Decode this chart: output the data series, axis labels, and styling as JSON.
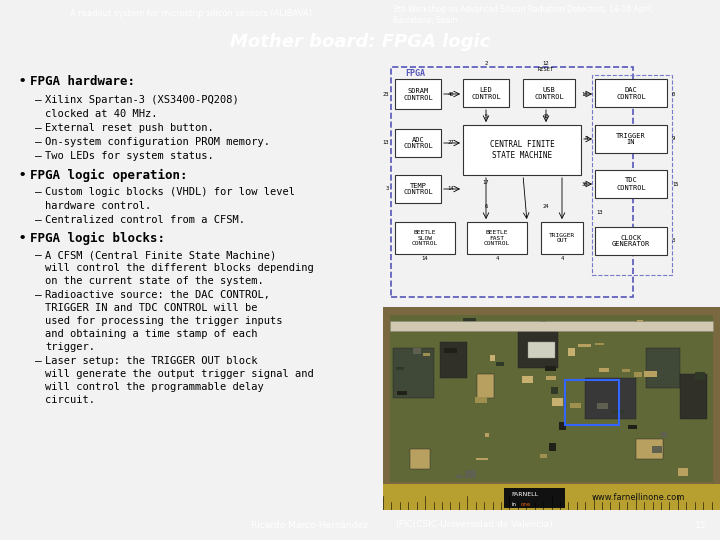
{
  "bg_color": "#f2f2f2",
  "header_left_color": "#1b3a6b",
  "header_right_color": "#7a7a7a",
  "title_bar_color": "#1b3a6b",
  "footer_left_color": "#1b3a6b",
  "footer_right_color": "#7a7a7a",
  "header_left_text": "A readout system for microstrip silicon sensors (ALIBAVA)",
  "header_right_line1": "3th Workshop on Advanced Silicon Radiation Detectors, 14-16 April,",
  "header_right_line2": "Barcelona, Spain",
  "title_text": "Mother board: FPGA logic",
  "footer_left_text": "Ricardo Marco-Hernández",
  "footer_right_text": "IFIC(CSIC-Universidad de Valencia)",
  "footer_page": "15",
  "white_text": "#ffffff",
  "black_text": "#000000",
  "fpga_border_color": "#5555bb",
  "io_border_color": "#7777cc",
  "block_bg": "#ffffff",
  "block_edge": "#333333",
  "diagram_bg": "#e8e8e8",
  "photo_pcb_color": "#b8a060",
  "photo_board_color": "#8a9060",
  "photo_ruler_color": "#c0b050"
}
